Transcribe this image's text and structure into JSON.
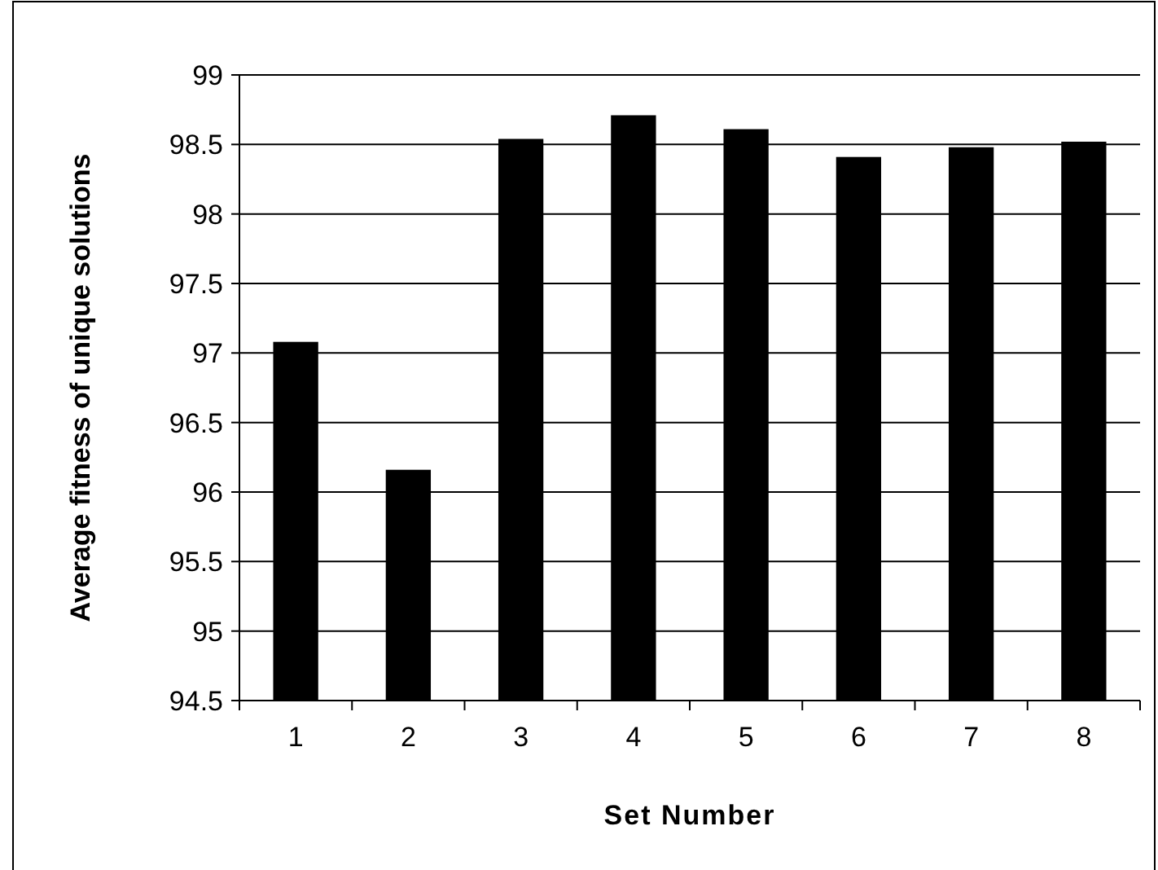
{
  "chart_data": {
    "type": "bar",
    "xlabel": "Set Number",
    "ylabel": "Average fitness of unique solutions",
    "categories": [
      "1",
      "2",
      "3",
      "4",
      "5",
      "6",
      "7",
      "8"
    ],
    "values": [
      97.08,
      96.16,
      98.54,
      98.71,
      98.61,
      98.41,
      98.48,
      98.52
    ],
    "color": "#000000",
    "ylim": [
      94.5,
      99
    ],
    "yticks": [
      94.5,
      95,
      95.5,
      96,
      96.5,
      97,
      97.5,
      98,
      98.5,
      99
    ],
    "grid": "y"
  }
}
